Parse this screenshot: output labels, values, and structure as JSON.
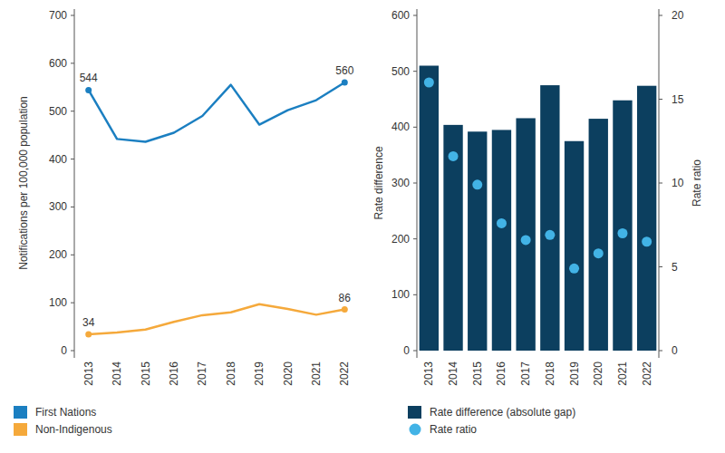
{
  "chart_data": [
    {
      "type": "line",
      "categories": [
        "2013",
        "2014",
        "2015",
        "2016",
        "2017",
        "2018",
        "2019",
        "2020",
        "2021",
        "2022"
      ],
      "series": [
        {
          "name": "First Nations",
          "color": "#1b7fc1",
          "values": [
            544,
            442,
            436,
            455,
            490,
            555,
            472,
            502,
            523,
            560
          ],
          "value_labels": [
            "544",
            null,
            null,
            null,
            null,
            null,
            null,
            null,
            null,
            "560"
          ]
        },
        {
          "name": "Non-Indigenous",
          "color": "#f5a93b",
          "values": [
            34,
            38,
            44,
            60,
            74,
            80,
            97,
            87,
            75,
            86
          ],
          "value_labels": [
            "34",
            null,
            null,
            null,
            null,
            null,
            null,
            null,
            null,
            "86"
          ]
        }
      ],
      "ylabel": "Notifications per 100,000 population",
      "ylim": [
        0,
        700
      ],
      "yticks": [
        0,
        100,
        200,
        300,
        400,
        500,
        600,
        700
      ],
      "grid": false,
      "legend": "bottom-left"
    },
    {
      "type": "bar",
      "categories": [
        "2013",
        "2014",
        "2015",
        "2016",
        "2017",
        "2018",
        "2019",
        "2020",
        "2021",
        "2022"
      ],
      "series": [
        {
          "name": "Rate difference (absolute gap)",
          "type": "bar",
          "color": "#0c3f5f",
          "values": [
            510,
            404,
            392,
            395,
            416,
            475,
            375,
            415,
            448,
            474
          ]
        },
        {
          "name": "Rate ratio",
          "type": "scatter",
          "marker": "circle",
          "color": "#42b3e6",
          "axis": "y2",
          "values": [
            16.0,
            11.6,
            9.9,
            7.6,
            6.6,
            6.9,
            4.9,
            5.8,
            7.0,
            6.5
          ]
        }
      ],
      "ylabel": "Rate difference",
      "y2label": "Rate ratio",
      "ylim": [
        0,
        600
      ],
      "yticks": [
        0,
        100,
        200,
        300,
        400,
        500,
        600
      ],
      "y2lim": [
        0,
        20
      ],
      "y2ticks": [
        0,
        5,
        10,
        15,
        20
      ],
      "grid": false,
      "legend": "bottom-left"
    }
  ]
}
